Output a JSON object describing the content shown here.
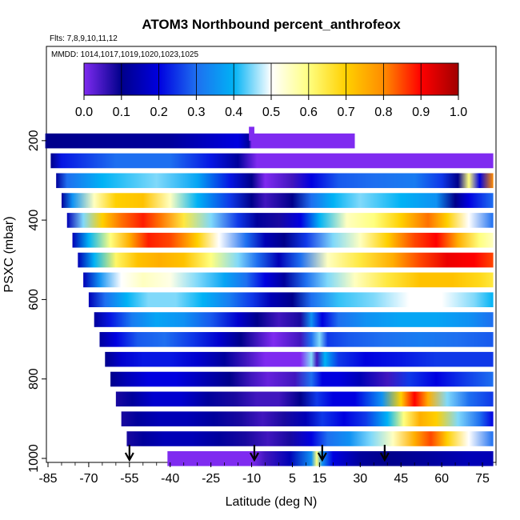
{
  "chart_data": {
    "type": "heatmap",
    "title": "ATOM3 Northbound percent_anthrofeox",
    "flights_label": "Flts: 7,8,9,10,11,12",
    "mmdd_label": "MMDD: 1014,1017,1019,1020,1023,1025",
    "xlabel": "Latitude (deg N)",
    "ylabel": "PSXC (mbar)",
    "xlim": [
      -85,
      80
    ],
    "ylim": [
      1010,
      140
    ],
    "x_ticks": [
      -85,
      -70,
      -55,
      -40,
      -25,
      -10,
      5,
      15,
      30,
      45,
      60,
      75
    ],
    "y_ticks": [
      200,
      400,
      600,
      800,
      1000
    ],
    "colorbar": {
      "range": [
        0.0,
        1.0
      ],
      "ticks": [
        "0.0",
        "0.1",
        "0.2",
        "0.3",
        "0.4",
        "0.5",
        "0.6",
        "0.7",
        "0.8",
        "0.9",
        "1.0"
      ],
      "colors": [
        "#7f2bf0",
        "#00008b",
        "#0000e0",
        "#1e6ff0",
        "#00b2f5",
        "#ffffff",
        "#ffff80",
        "#ffd000",
        "#ff8c00",
        "#ff0000",
        "#a00000"
      ]
    },
    "arrows_latitude": [
      -55,
      -9,
      16,
      39
    ],
    "bands": [
      {
        "p": 200,
        "x0": -86,
        "x1": 28,
        "cols": [
          [
            -86,
            0.1
          ],
          [
            -40,
            0.12
          ],
          [
            -15,
            0.2
          ],
          [
            -11,
            0.12
          ],
          [
            -10,
            0
          ]
        ]
      },
      {
        "p": 250,
        "x0": -84,
        "x1": 79,
        "cols": [
          [
            -84,
            0.1
          ],
          [
            -80,
            0.22
          ],
          [
            -60,
            0.3
          ],
          [
            -40,
            0.3
          ],
          [
            -25,
            0.22
          ],
          [
            -15,
            0.12
          ],
          [
            -8,
            0
          ],
          [
            79,
            0
          ]
        ]
      },
      {
        "p": 300,
        "x0": -82,
        "x1": 79,
        "cols": [
          [
            -82,
            0.12
          ],
          [
            -78,
            0.3
          ],
          [
            -65,
            0.4
          ],
          [
            -45,
            0.45
          ],
          [
            -30,
            0.38
          ],
          [
            -18,
            0.22
          ],
          [
            -10,
            0.1
          ],
          [
            -5,
            0
          ],
          [
            5,
            0.05
          ],
          [
            12,
            0.2
          ],
          [
            22,
            0.28
          ],
          [
            35,
            0.3
          ],
          [
            50,
            0.32
          ],
          [
            60,
            0.25
          ],
          [
            66,
            0.1
          ],
          [
            70,
            0.6
          ],
          [
            74,
            0.2
          ],
          [
            79,
            0.8
          ]
        ]
      },
      {
        "p": 350,
        "x0": -80,
        "x1": 79,
        "cols": [
          [
            -80,
            0.12
          ],
          [
            -76,
            0.35
          ],
          [
            -68,
            0.55
          ],
          [
            -60,
            0.7
          ],
          [
            -50,
            0.72
          ],
          [
            -40,
            0.55
          ],
          [
            -30,
            0.4
          ],
          [
            -18,
            0.25
          ],
          [
            -10,
            0.1
          ],
          [
            -5,
            0.05
          ],
          [
            5,
            0.1
          ],
          [
            12,
            0.3
          ],
          [
            20,
            0.4
          ],
          [
            30,
            0.45
          ],
          [
            45,
            0.4
          ],
          [
            58,
            0.35
          ],
          [
            65,
            0.1
          ],
          [
            70,
            0.2
          ],
          [
            79,
            0.3
          ]
        ]
      },
      {
        "p": 400,
        "x0": -78,
        "x1": 79,
        "cols": [
          [
            -78,
            0.15
          ],
          [
            -72,
            0.45
          ],
          [
            -65,
            0.7
          ],
          [
            -58,
            0.82
          ],
          [
            -50,
            0.88
          ],
          [
            -44,
            0.82
          ],
          [
            -35,
            0.65
          ],
          [
            -25,
            0.45
          ],
          [
            -15,
            0.25
          ],
          [
            -8,
            0.12
          ],
          [
            0,
            0.08
          ],
          [
            8,
            0.2
          ],
          [
            15,
            0.4
          ],
          [
            25,
            0.55
          ],
          [
            35,
            0.6
          ],
          [
            45,
            0.7
          ],
          [
            55,
            0.82
          ],
          [
            62,
            0.7
          ],
          [
            70,
            0.5
          ],
          [
            79,
            0.3
          ]
        ]
      },
      {
        "p": 450,
        "x0": -76,
        "x1": 79,
        "cols": [
          [
            -76,
            0.15
          ],
          [
            -70,
            0.4
          ],
          [
            -62,
            0.6
          ],
          [
            -55,
            0.75
          ],
          [
            -48,
            0.88
          ],
          [
            -40,
            0.85
          ],
          [
            -30,
            0.7
          ],
          [
            -22,
            0.5
          ],
          [
            -12,
            0.3
          ],
          [
            -5,
            0.15
          ],
          [
            2,
            0.1
          ],
          [
            10,
            0.25
          ],
          [
            20,
            0.45
          ],
          [
            30,
            0.55
          ],
          [
            40,
            0.7
          ],
          [
            50,
            0.85
          ],
          [
            58,
            0.9
          ],
          [
            66,
            0.75
          ],
          [
            74,
            0.6
          ],
          [
            79,
            0.55
          ]
        ]
      },
      {
        "p": 500,
        "x0": -74,
        "x1": 79,
        "cols": [
          [
            -74,
            0.15
          ],
          [
            -68,
            0.4
          ],
          [
            -60,
            0.62
          ],
          [
            -52,
            0.72
          ],
          [
            -44,
            0.75
          ],
          [
            -35,
            0.72
          ],
          [
            -25,
            0.6
          ],
          [
            -15,
            0.45
          ],
          [
            -8,
            0.3
          ],
          [
            0,
            0.15
          ],
          [
            8,
            0.3
          ],
          [
            18,
            0.55
          ],
          [
            30,
            0.65
          ],
          [
            42,
            0.75
          ],
          [
            52,
            0.85
          ],
          [
            62,
            0.92
          ],
          [
            72,
            0.9
          ],
          [
            79,
            0.85
          ]
        ]
      },
      {
        "p": 550,
        "x0": -72,
        "x1": 79,
        "cols": [
          [
            -72,
            0.15
          ],
          [
            -66,
            0.35
          ],
          [
            -58,
            0.5
          ],
          [
            -50,
            0.55
          ],
          [
            -40,
            0.52
          ],
          [
            -30,
            0.45
          ],
          [
            -20,
            0.38
          ],
          [
            -12,
            0.3
          ],
          [
            -5,
            0.2
          ],
          [
            2,
            0.12
          ],
          [
            10,
            0.3
          ],
          [
            18,
            0.45
          ],
          [
            28,
            0.55
          ],
          [
            40,
            0.65
          ],
          [
            52,
            0.72
          ],
          [
            64,
            0.72
          ],
          [
            74,
            0.68
          ],
          [
            79,
            0.65
          ]
        ]
      },
      {
        "p": 600,
        "x0": -70,
        "x1": 79,
        "cols": [
          [
            -70,
            0.15
          ],
          [
            -64,
            0.3
          ],
          [
            -56,
            0.4
          ],
          [
            -48,
            0.45
          ],
          [
            -38,
            0.45
          ],
          [
            -28,
            0.4
          ],
          [
            -18,
            0.32
          ],
          [
            -10,
            0.25
          ],
          [
            -3,
            0.15
          ],
          [
            5,
            0.1
          ],
          [
            12,
            0.3
          ],
          [
            22,
            0.42
          ],
          [
            35,
            0.45
          ],
          [
            48,
            0.5
          ],
          [
            60,
            0.5
          ],
          [
            72,
            0.45
          ],
          [
            79,
            0.4
          ]
        ]
      },
      {
        "p": 650,
        "x0": -68,
        "x1": 79,
        "cols": [
          [
            -68,
            0.12
          ],
          [
            -62,
            0.22
          ],
          [
            -54,
            0.32
          ],
          [
            -45,
            0.38
          ],
          [
            -35,
            0.35
          ],
          [
            -25,
            0.28
          ],
          [
            -15,
            0.18
          ],
          [
            -8,
            0.1
          ],
          [
            0,
            0.05
          ],
          [
            8,
            0.08
          ],
          [
            12,
            0.35
          ],
          [
            16,
            0.2
          ],
          [
            22,
            0.3
          ],
          [
            32,
            0.35
          ],
          [
            45,
            0.38
          ],
          [
            58,
            0.38
          ],
          [
            70,
            0.35
          ],
          [
            79,
            0.3
          ]
        ]
      },
      {
        "p": 700,
        "x0": -66,
        "x1": 79,
        "cols": [
          [
            -66,
            0.12
          ],
          [
            -60,
            0.2
          ],
          [
            -52,
            0.28
          ],
          [
            -42,
            0.3
          ],
          [
            -32,
            0.25
          ],
          [
            -22,
            0.18
          ],
          [
            -14,
            0.1
          ],
          [
            -8,
            0.05
          ],
          [
            -2,
            0
          ],
          [
            8,
            0.05
          ],
          [
            12,
            0.3
          ],
          [
            15,
            0.45
          ],
          [
            18,
            0.25
          ],
          [
            26,
            0.28
          ],
          [
            38,
            0.3
          ],
          [
            52,
            0.32
          ],
          [
            66,
            0.3
          ],
          [
            79,
            0.28
          ]
        ]
      },
      {
        "p": 750,
        "x0": -64,
        "x1": 79,
        "cols": [
          [
            -64,
            0.1
          ],
          [
            -58,
            0.18
          ],
          [
            -50,
            0.22
          ],
          [
            -40,
            0.22
          ],
          [
            -30,
            0.18
          ],
          [
            -20,
            0.12
          ],
          [
            -12,
            0.05
          ],
          [
            -5,
            0
          ],
          [
            8,
            0
          ],
          [
            12,
            0.45
          ],
          [
            14,
            0.05
          ],
          [
            17,
            0.4
          ],
          [
            22,
            0.25
          ],
          [
            32,
            0.2
          ],
          [
            45,
            0.22
          ],
          [
            58,
            0.25
          ],
          [
            70,
            0.25
          ],
          [
            79,
            0.25
          ]
        ]
      },
      {
        "p": 800,
        "x0": -62,
        "x1": 79,
        "cols": [
          [
            -62,
            0.1
          ],
          [
            -56,
            0.15
          ],
          [
            -48,
            0.2
          ],
          [
            -38,
            0.2
          ],
          [
            -28,
            0.15
          ],
          [
            -18,
            0.1
          ],
          [
            -10,
            0.05
          ],
          [
            -4,
            0.02
          ],
          [
            6,
            0.05
          ],
          [
            12,
            0.3
          ],
          [
            16,
            0.2
          ],
          [
            22,
            0.2
          ],
          [
            30,
            0.15
          ],
          [
            40,
            0.05
          ],
          [
            48,
            0.25
          ],
          [
            58,
            0.2
          ],
          [
            68,
            0.25
          ],
          [
            79,
            0.3
          ]
        ]
      },
      {
        "p": 850,
        "x0": -60,
        "x1": 79,
        "cols": [
          [
            -60,
            0.08
          ],
          [
            -54,
            0.12
          ],
          [
            -46,
            0.18
          ],
          [
            -36,
            0.18
          ],
          [
            -26,
            0.12
          ],
          [
            -16,
            0.08
          ],
          [
            -8,
            0.05
          ],
          [
            0,
            0.05
          ],
          [
            8,
            0.1
          ],
          [
            14,
            0.25
          ],
          [
            20,
            0.2
          ],
          [
            28,
            0.2
          ],
          [
            38,
            0.35
          ],
          [
            45,
            0.7
          ],
          [
            50,
            0.9
          ],
          [
            55,
            0.75
          ],
          [
            62,
            0.45
          ],
          [
            70,
            0.3
          ],
          [
            79,
            0.25
          ]
        ]
      },
      {
        "p": 900,
        "x0": -58,
        "x1": 79,
        "cols": [
          [
            -58,
            0.08
          ],
          [
            -52,
            0.12
          ],
          [
            -44,
            0.15
          ],
          [
            -34,
            0.15
          ],
          [
            -24,
            0.12
          ],
          [
            -14,
            0.08
          ],
          [
            -6,
            0.05
          ],
          [
            2,
            0.08
          ],
          [
            10,
            0.15
          ],
          [
            16,
            0.25
          ],
          [
            24,
            0.2
          ],
          [
            32,
            0.25
          ],
          [
            40,
            0.4
          ],
          [
            46,
            0.6
          ],
          [
            52,
            0.75
          ],
          [
            58,
            0.7
          ],
          [
            66,
            0.45
          ],
          [
            74,
            0.3
          ],
          [
            79,
            0.2
          ]
        ]
      },
      {
        "p": 950,
        "x0": -56,
        "x1": 79,
        "cols": [
          [
            -56,
            0.08
          ],
          [
            -50,
            0.12
          ],
          [
            -42,
            0.15
          ],
          [
            -32,
            0.15
          ],
          [
            -22,
            0.12
          ],
          [
            -12,
            0.08
          ],
          [
            -4,
            0.05
          ],
          [
            4,
            0.08
          ],
          [
            12,
            0.2
          ],
          [
            18,
            0.3
          ],
          [
            26,
            0.35
          ],
          [
            34,
            0.45
          ],
          [
            42,
            0.55
          ],
          [
            50,
            0.75
          ],
          [
            56,
            0.85
          ],
          [
            62,
            0.7
          ],
          [
            70,
            0.5
          ],
          [
            79,
            0.3
          ]
        ]
      },
      {
        "p": 1000,
        "x0": -41,
        "x1": 79,
        "cols": [
          [
            -41,
            0
          ],
          [
            -10,
            0
          ],
          [
            -5,
            0.05
          ],
          [
            4,
            0.15
          ],
          [
            12,
            0.35
          ],
          [
            14,
            0.6
          ],
          [
            16,
            0.35
          ],
          [
            20,
            0.2
          ],
          [
            30,
            0.12
          ],
          [
            40,
            0.1
          ],
          [
            55,
            0.12
          ],
          [
            70,
            0.15
          ],
          [
            79,
            0.15
          ]
        ]
      }
    ],
    "spike": {
      "p_top": 165,
      "p_bottom": 200,
      "x0": -11,
      "x1": -9
    }
  }
}
